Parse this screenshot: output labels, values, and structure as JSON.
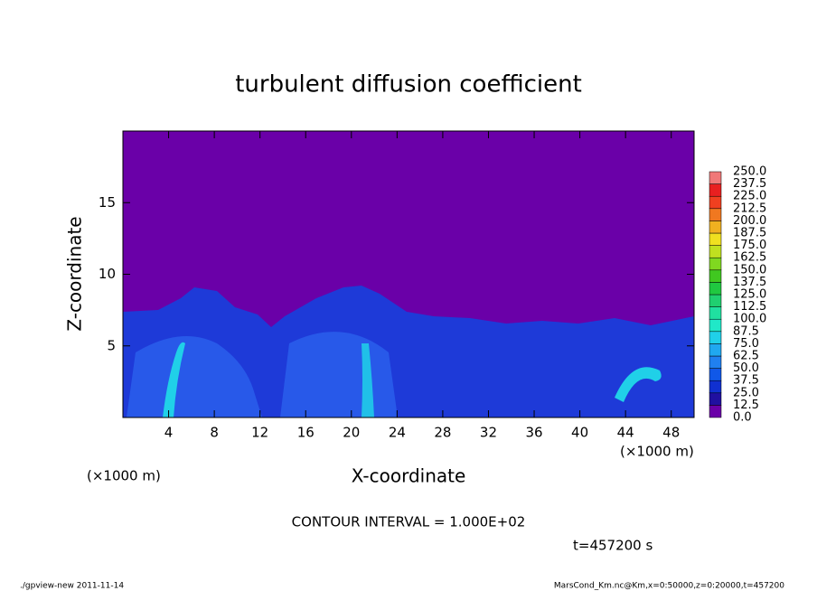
{
  "chart_data": {
    "type": "contour",
    "title": "turbulent diffusion coefficient",
    "x_label": "X-coordinate",
    "y_label": "Z-coordinate",
    "x_unit": "(×1000 m)",
    "xlim": [
      0,
      50
    ],
    "xticks": [
      4,
      8,
      12,
      16,
      20,
      24,
      28,
      32,
      36,
      40,
      44,
      48
    ],
    "ylim": [
      0,
      20
    ],
    "yticks": [
      5,
      10,
      15
    ],
    "colorbar": {
      "levels": [
        {
          "value": 0,
          "label": "0.0"
        },
        {
          "value": 12.5,
          "label": "12.5"
        },
        {
          "value": 25,
          "label": "25.0"
        },
        {
          "value": 37.5,
          "label": "37.5"
        },
        {
          "value": 50,
          "label": "50.0"
        },
        {
          "value": 62.5,
          "label": "62.5"
        },
        {
          "value": 75,
          "label": "75.0"
        },
        {
          "value": 87.5,
          "label": "87.5"
        },
        {
          "value": 100,
          "label": "100.0"
        },
        {
          "value": 112.5,
          "label": "112.5"
        },
        {
          "value": 125,
          "label": "125.0"
        },
        {
          "value": 137.5,
          "label": "137.5"
        },
        {
          "value": 150,
          "label": "150.0"
        },
        {
          "value": 162.5,
          "label": "162.5"
        },
        {
          "value": 175,
          "label": "175.0"
        },
        {
          "value": 187.5,
          "label": "187.5"
        },
        {
          "value": 200,
          "label": "200.0"
        },
        {
          "value": 212.5,
          "label": "212.5"
        },
        {
          "value": 225,
          "label": "225.0"
        },
        {
          "value": 237.5,
          "label": "237.5"
        },
        {
          "value": 250,
          "label": "250.0"
        }
      ],
      "colors": [
        "#6a00a8",
        "#2010a0",
        "#1030d0",
        "#1058e8",
        "#2080f0",
        "#20a8f0",
        "#20d0e8",
        "#20e8c8",
        "#20e0a0",
        "#20d070",
        "#20c840",
        "#40c820",
        "#80d820",
        "#c0e020",
        "#f0e020",
        "#f0b020",
        "#f07820",
        "#f04020",
        "#e82020",
        "#f07878"
      ]
    },
    "contour_interval": "CONTOUR INTERVAL = 1.000E+02",
    "time_label": "t=457200 s",
    "footer_left": "./gpview-new  2011-11-14",
    "footer_right": "MarsCond_Km.nc@Km,x=0:50000,z=0:20000,t=457200"
  }
}
